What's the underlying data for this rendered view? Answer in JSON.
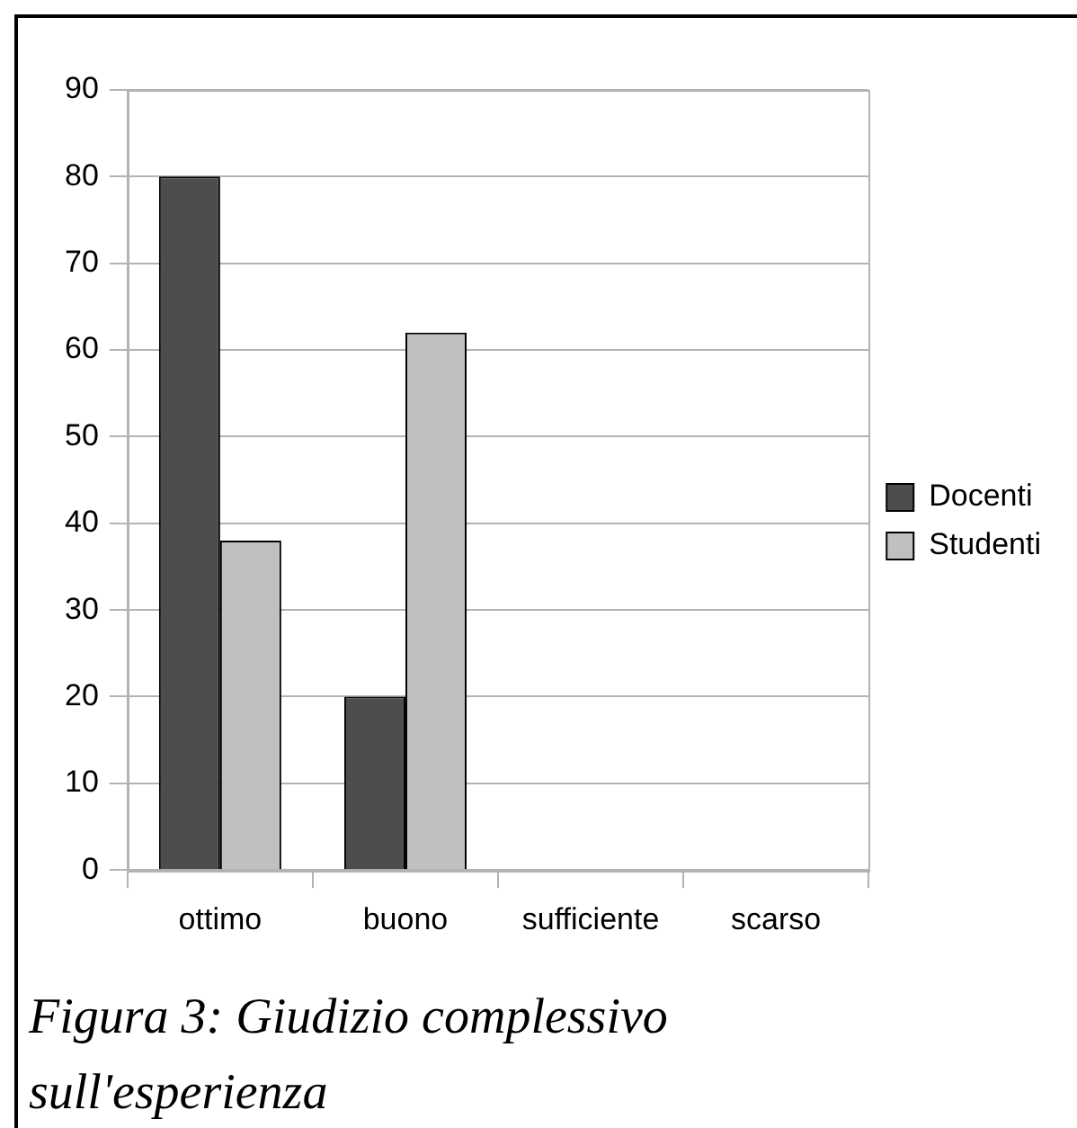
{
  "chart_data": {
    "type": "bar",
    "categories": [
      "ottimo",
      "buono",
      "sufficiente",
      "scarso"
    ],
    "series": [
      {
        "name": "Docenti",
        "color": "#4d4d4d",
        "values": [
          80,
          20,
          0,
          0
        ]
      },
      {
        "name": "Studenti",
        "color": "#c0c0c0",
        "values": [
          38,
          62,
          0,
          0
        ]
      }
    ],
    "ylim": [
      0,
      90
    ],
    "yticks": [
      0,
      10,
      20,
      30,
      40,
      50,
      60,
      70,
      80,
      90
    ],
    "grid": "y",
    "legend": "right",
    "annotations": [
      "Figura 3: Giudizio complessivo sull'esperienza"
    ]
  }
}
